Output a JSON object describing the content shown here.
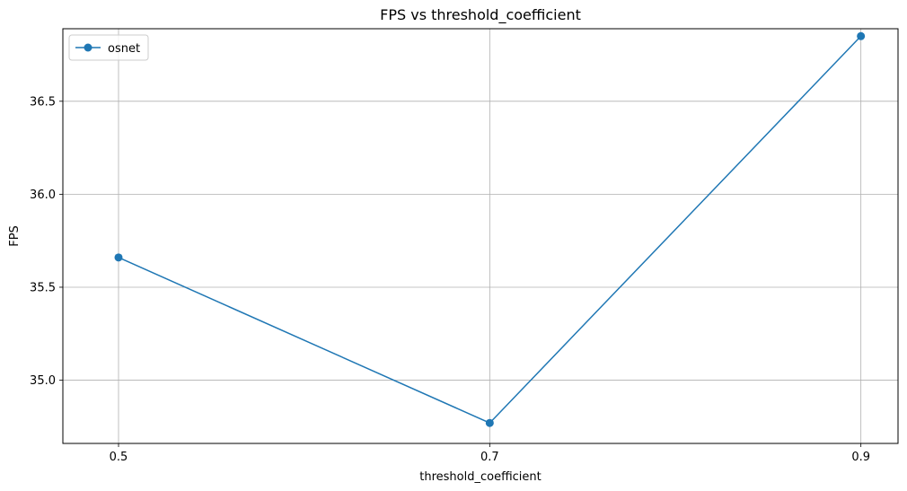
{
  "chart_data": {
    "type": "line",
    "title": "FPS vs threshold_coefficient",
    "xlabel": "threshold_coefficient",
    "ylabel": "FPS",
    "x": [
      0.5,
      0.7,
      0.9
    ],
    "x_tick_labels": [
      "0.5",
      "0.7",
      "0.9"
    ],
    "y_ticks": [
      35.0,
      35.5,
      36.0,
      36.5
    ],
    "y_tick_labels": [
      "35.0",
      "35.5",
      "36.0",
      "36.5"
    ],
    "xlim": [
      0.47,
      0.92
    ],
    "ylim": [
      34.66,
      36.89
    ],
    "grid": true,
    "legend_position": "top-left",
    "series": [
      {
        "name": "osnet",
        "color": "#1f77b4",
        "marker": "circle",
        "values": [
          35.66,
          34.77,
          36.85
        ]
      }
    ]
  }
}
